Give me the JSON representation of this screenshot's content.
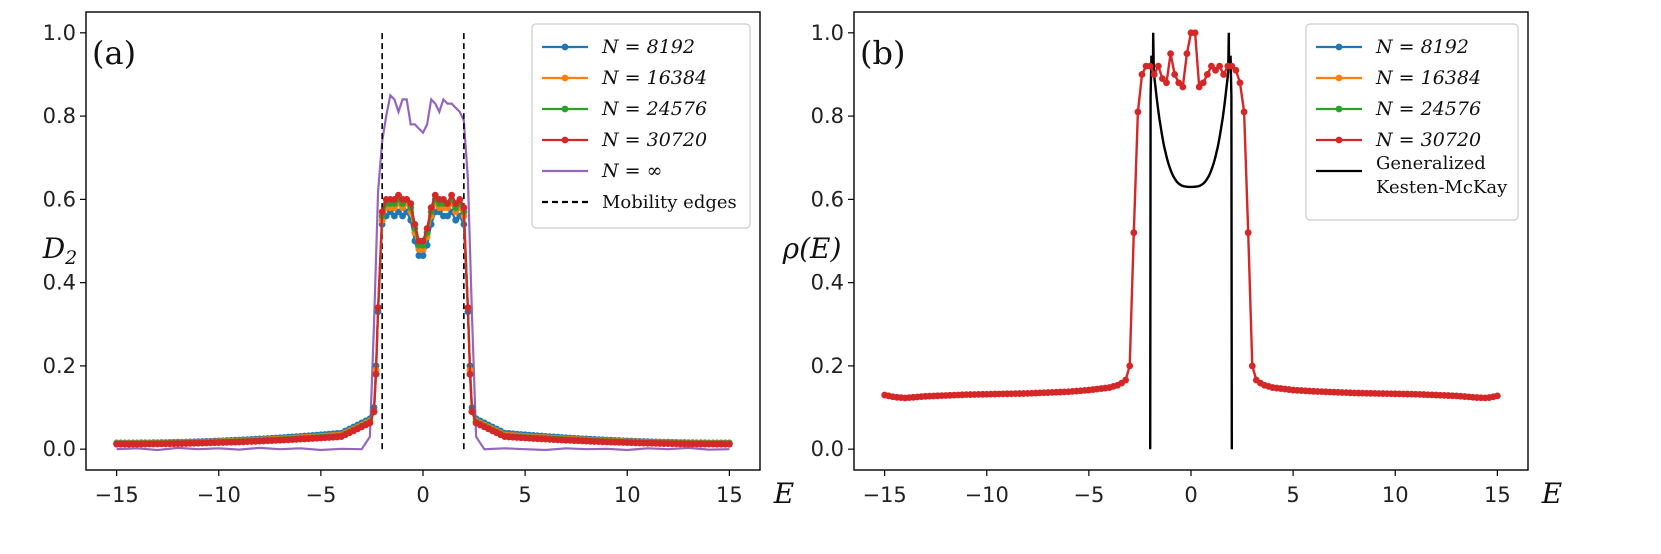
{
  "chart_data": [
    {
      "panel": "(a)",
      "type": "line",
      "xlabel": "E",
      "ylabel": "D_2",
      "xlim": [
        -16.5,
        16.5
      ],
      "ylim": [
        -0.05,
        1.05
      ],
      "xticks": [
        -15,
        -10,
        -5,
        0,
        5,
        10,
        15
      ],
      "xtick_labels": [
        "−15",
        "−10",
        "−5",
        "0",
        "5",
        "10",
        "15"
      ],
      "yticks": [
        0.0,
        0.2,
        0.4,
        0.6,
        0.8,
        1.0
      ],
      "ytick_labels": [
        "0.0",
        "0.2",
        "0.4",
        "0.6",
        "0.8",
        "1.0"
      ],
      "legend_position": "top-right",
      "legend": [
        {
          "label": "N = 8192",
          "color": "#1f77b4",
          "marker": true
        },
        {
          "label": "N = 16384",
          "color": "#ff7f0e",
          "marker": true
        },
        {
          "label": "N = 24576",
          "color": "#2ca02c",
          "marker": true
        },
        {
          "label": "N = 30720",
          "color": "#d62728",
          "marker": true
        },
        {
          "label": "N = ∞",
          "color": "#9467bd",
          "marker": false
        },
        {
          "label": "Mobility edges",
          "color": "#000000",
          "dashed": true
        }
      ],
      "mobility_edges": [
        -2.0,
        2.0
      ],
      "mobility_edge_range": [
        0.0,
        1.0
      ],
      "series": [
        {
          "name": "N = 8192",
          "color": "#1f77b4",
          "outer": {
            "left": 0.015,
            "right": 0.045
          },
          "edge": [
            0.1,
            0.2,
            0.33
          ],
          "center": [
            [
              -2.0,
              0.54
            ],
            [
              -1.8,
              0.56
            ],
            [
              -1.6,
              0.57
            ],
            [
              -1.4,
              0.56
            ],
            [
              -1.2,
              0.57
            ],
            [
              -1.0,
              0.56
            ],
            [
              -0.8,
              0.57
            ],
            [
              -0.6,
              0.55
            ],
            [
              -0.4,
              0.5
            ],
            [
              -0.2,
              0.465
            ],
            [
              0.0,
              0.465
            ],
            [
              0.2,
              0.49
            ],
            [
              0.4,
              0.54
            ],
            [
              0.6,
              0.57
            ],
            [
              0.8,
              0.57
            ],
            [
              1.0,
              0.56
            ],
            [
              1.2,
              0.56
            ],
            [
              1.4,
              0.57
            ],
            [
              1.6,
              0.55
            ],
            [
              1.8,
              0.56
            ],
            [
              2.0,
              0.54
            ]
          ]
        },
        {
          "name": "N = 16384",
          "color": "#ff7f0e",
          "outer": {
            "left": 0.014,
            "right": 0.04
          },
          "edge": [
            0.09,
            0.19,
            0.34
          ],
          "center": [
            [
              -2.0,
              0.55
            ],
            [
              -1.8,
              0.58
            ],
            [
              -1.6,
              0.58
            ],
            [
              -1.4,
              0.58
            ],
            [
              -1.2,
              0.59
            ],
            [
              -1.0,
              0.58
            ],
            [
              -0.8,
              0.59
            ],
            [
              -0.6,
              0.57
            ],
            [
              -0.4,
              0.52
            ],
            [
              -0.2,
              0.48
            ],
            [
              0.0,
              0.48
            ],
            [
              0.2,
              0.51
            ],
            [
              0.4,
              0.56
            ],
            [
              0.6,
              0.59
            ],
            [
              0.8,
              0.58
            ],
            [
              1.0,
              0.58
            ],
            [
              1.2,
              0.58
            ],
            [
              1.4,
              0.59
            ],
            [
              1.6,
              0.57
            ],
            [
              1.8,
              0.58
            ],
            [
              2.0,
              0.56
            ]
          ]
        },
        {
          "name": "N = 24576",
          "color": "#2ca02c",
          "outer": {
            "left": 0.013,
            "right": 0.037
          },
          "edge": [
            0.09,
            0.18,
            0.34
          ],
          "center": [
            [
              -2.0,
              0.56
            ],
            [
              -1.8,
              0.59
            ],
            [
              -1.6,
              0.59
            ],
            [
              -1.4,
              0.59
            ],
            [
              -1.2,
              0.6
            ],
            [
              -1.0,
              0.59
            ],
            [
              -0.8,
              0.6
            ],
            [
              -0.6,
              0.58
            ],
            [
              -0.4,
              0.53
            ],
            [
              -0.2,
              0.49
            ],
            [
              0.0,
              0.49
            ],
            [
              0.2,
              0.52
            ],
            [
              0.4,
              0.57
            ],
            [
              0.6,
              0.6
            ],
            [
              0.8,
              0.59
            ],
            [
              1.0,
              0.59
            ],
            [
              1.2,
              0.59
            ],
            [
              1.4,
              0.6
            ],
            [
              1.6,
              0.58
            ],
            [
              1.8,
              0.59
            ],
            [
              2.0,
              0.57
            ]
          ]
        },
        {
          "name": "N = 30720",
          "color": "#d62728",
          "outer": {
            "left": 0.012,
            "right": 0.035
          },
          "edge": [
            0.09,
            0.18,
            0.34
          ],
          "center": [
            [
              -2.0,
              0.57
            ],
            [
              -1.8,
              0.6
            ],
            [
              -1.6,
              0.6
            ],
            [
              -1.4,
              0.6
            ],
            [
              -1.2,
              0.61
            ],
            [
              -1.0,
              0.6
            ],
            [
              -0.8,
              0.6
            ],
            [
              -0.6,
              0.59
            ],
            [
              -0.4,
              0.54
            ],
            [
              -0.2,
              0.5
            ],
            [
              0.0,
              0.5
            ],
            [
              0.2,
              0.53
            ],
            [
              0.4,
              0.58
            ],
            [
              0.6,
              0.61
            ],
            [
              0.8,
              0.6
            ],
            [
              1.0,
              0.6
            ],
            [
              1.2,
              0.59
            ],
            [
              1.4,
              0.61
            ],
            [
              1.6,
              0.59
            ],
            [
              1.8,
              0.6
            ],
            [
              2.0,
              0.58
            ]
          ]
        },
        {
          "name": "N = ∞",
          "color": "#9467bd",
          "points": [
            [
              -15,
              0.0
            ],
            [
              -14,
              0.002
            ],
            [
              -13,
              -0.002
            ],
            [
              -12,
              0.003
            ],
            [
              -11,
              0.0
            ],
            [
              -10,
              0.002
            ],
            [
              -9,
              -0.001
            ],
            [
              -8,
              0.003
            ],
            [
              -7,
              0.0
            ],
            [
              -6,
              0.002
            ],
            [
              -5,
              -0.002
            ],
            [
              -4,
              0.001
            ],
            [
              -3,
              0.0
            ],
            [
              -2.6,
              0.03
            ],
            [
              -2.4,
              0.3
            ],
            [
              -2.2,
              0.62
            ],
            [
              -2.0,
              0.74
            ],
            [
              -1.8,
              0.8
            ],
            [
              -1.6,
              0.85
            ],
            [
              -1.4,
              0.84
            ],
            [
              -1.2,
              0.81
            ],
            [
              -1.0,
              0.84
            ],
            [
              -0.8,
              0.84
            ],
            [
              -0.6,
              0.78
            ],
            [
              -0.4,
              0.78
            ],
            [
              -0.2,
              0.77
            ],
            [
              0.0,
              0.76
            ],
            [
              0.2,
              0.78
            ],
            [
              0.4,
              0.84
            ],
            [
              0.6,
              0.83
            ],
            [
              0.8,
              0.81
            ],
            [
              1.0,
              0.84
            ],
            [
              1.2,
              0.83
            ],
            [
              1.4,
              0.83
            ],
            [
              1.6,
              0.82
            ],
            [
              1.8,
              0.81
            ],
            [
              2.0,
              0.79
            ],
            [
              2.2,
              0.65
            ],
            [
              2.4,
              0.32
            ],
            [
              2.6,
              0.03
            ],
            [
              3,
              0.0
            ],
            [
              4,
              0.002
            ],
            [
              5,
              0.0
            ],
            [
              6,
              -0.002
            ],
            [
              7,
              0.002
            ],
            [
              8,
              0.0
            ],
            [
              9,
              0.001
            ],
            [
              10,
              -0.002
            ],
            [
              11,
              0.002
            ],
            [
              12,
              0.0
            ],
            [
              13,
              0.003
            ],
            [
              14,
              -0.001
            ],
            [
              15,
              0.0
            ]
          ]
        }
      ]
    },
    {
      "panel": "(b)",
      "type": "line",
      "xlabel": "E",
      "ylabel": "ρ(E)",
      "xlim": [
        -16.5,
        16.5
      ],
      "ylim": [
        -0.05,
        1.05
      ],
      "xticks": [
        -15,
        -10,
        -5,
        0,
        5,
        10,
        15
      ],
      "xtick_labels": [
        "−15",
        "−10",
        "−5",
        "0",
        "5",
        "10",
        "15"
      ],
      "yticks": [
        0.0,
        0.2,
        0.4,
        0.6,
        0.8,
        1.0
      ],
      "ytick_labels": [
        "0.0",
        "0.2",
        "0.4",
        "0.6",
        "0.8",
        "1.0"
      ],
      "legend_position": "top-right",
      "legend": [
        {
          "label": "N = 8192",
          "color": "#1f77b4",
          "marker": true
        },
        {
          "label": "N = 16384",
          "color": "#ff7f0e",
          "marker": true
        },
        {
          "label": "N = 24576",
          "color": "#2ca02c",
          "marker": true
        },
        {
          "label": "N = 30720",
          "color": "#d62728",
          "marker": true
        },
        {
          "label": "Generalized",
          "label2": "Kesten-McKay",
          "color": "#000000",
          "marker": false
        }
      ],
      "kesten_mckay": {
        "edges": [
          -2.0,
          2.0
        ],
        "peak": 1.0,
        "center": 0.63
      },
      "series_all": {
        "name": "N = 8192 … N = 30720 (overlapping)",
        "color": "#d62728",
        "outer_points": [
          [
            -15,
            0.13
          ],
          [
            -14.5,
            0.125
          ],
          [
            -14,
            0.123
          ],
          [
            -13,
            0.127
          ],
          [
            -12,
            0.129
          ],
          [
            -11,
            0.131
          ],
          [
            -10,
            0.132
          ],
          [
            -9,
            0.133
          ],
          [
            -8,
            0.134
          ],
          [
            -7,
            0.136
          ],
          [
            -6,
            0.138
          ],
          [
            -5,
            0.142
          ],
          [
            -4,
            0.148
          ],
          [
            -3.5,
            0.155
          ],
          [
            -3.2,
            0.166
          ]
        ],
        "center": [
          [
            -3.0,
            0.2
          ],
          [
            -2.8,
            0.52
          ],
          [
            -2.6,
            0.81
          ],
          [
            -2.4,
            0.9
          ],
          [
            -2.2,
            0.92
          ],
          [
            -2.0,
            0.92
          ],
          [
            -1.8,
            0.9
          ],
          [
            -1.6,
            0.92
          ],
          [
            -1.4,
            0.89
          ],
          [
            -1.2,
            0.88
          ],
          [
            -1.0,
            0.95
          ],
          [
            -0.8,
            0.9
          ],
          [
            -0.6,
            0.88
          ],
          [
            -0.4,
            0.87
          ],
          [
            -0.2,
            0.95
          ],
          [
            0.0,
            1.0
          ],
          [
            0.2,
            1.0
          ],
          [
            0.4,
            0.87
          ],
          [
            0.6,
            0.88
          ],
          [
            0.8,
            0.9
          ],
          [
            1.0,
            0.92
          ],
          [
            1.2,
            0.91
          ],
          [
            1.4,
            0.92
          ],
          [
            1.6,
            0.9
          ],
          [
            1.8,
            0.92
          ],
          [
            2.0,
            0.92
          ],
          [
            2.2,
            0.91
          ],
          [
            2.4,
            0.88
          ],
          [
            2.6,
            0.81
          ],
          [
            2.8,
            0.52
          ],
          [
            3.0,
            0.2
          ]
        ],
        "outer_right": [
          [
            3.2,
            0.166
          ],
          [
            3.5,
            0.155
          ],
          [
            4,
            0.148
          ],
          [
            5,
            0.142
          ],
          [
            6,
            0.139
          ],
          [
            7,
            0.137
          ],
          [
            8,
            0.135
          ],
          [
            9,
            0.134
          ],
          [
            10,
            0.133
          ],
          [
            11,
            0.132
          ],
          [
            12,
            0.13
          ],
          [
            13,
            0.128
          ],
          [
            14,
            0.124
          ],
          [
            14.5,
            0.123
          ],
          [
            15,
            0.128
          ]
        ]
      }
    }
  ]
}
